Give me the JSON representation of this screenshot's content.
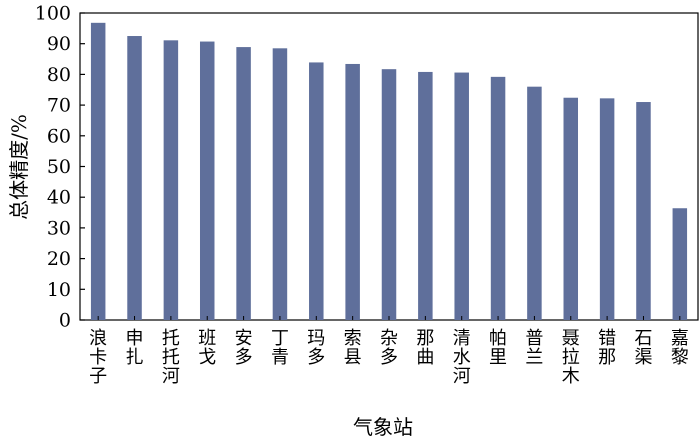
{
  "chart_data": {
    "type": "bar",
    "xlabel": "气象站",
    "ylabel": "总体精度/%",
    "ylim": [
      0,
      100
    ],
    "yticks": [
      0,
      10,
      20,
      30,
      40,
      50,
      60,
      70,
      80,
      90,
      100
    ],
    "grid": false,
    "bar_color": "#5f6f9b",
    "categories": [
      "浪卡子",
      "申扎",
      "托托河",
      "班戈",
      "安多",
      "丁青",
      "玛多",
      "索县",
      "杂多",
      "那曲",
      "清水河",
      "帕里",
      "普兰",
      "聂拉木",
      "错那",
      "石渠",
      "嘉黎"
    ],
    "values": [
      96.8,
      92.5,
      91.1,
      90.7,
      88.9,
      88.5,
      83.9,
      83.4,
      81.7,
      80.8,
      80.6,
      79.2,
      76.0,
      72.4,
      72.2,
      71.0,
      36.4
    ]
  }
}
